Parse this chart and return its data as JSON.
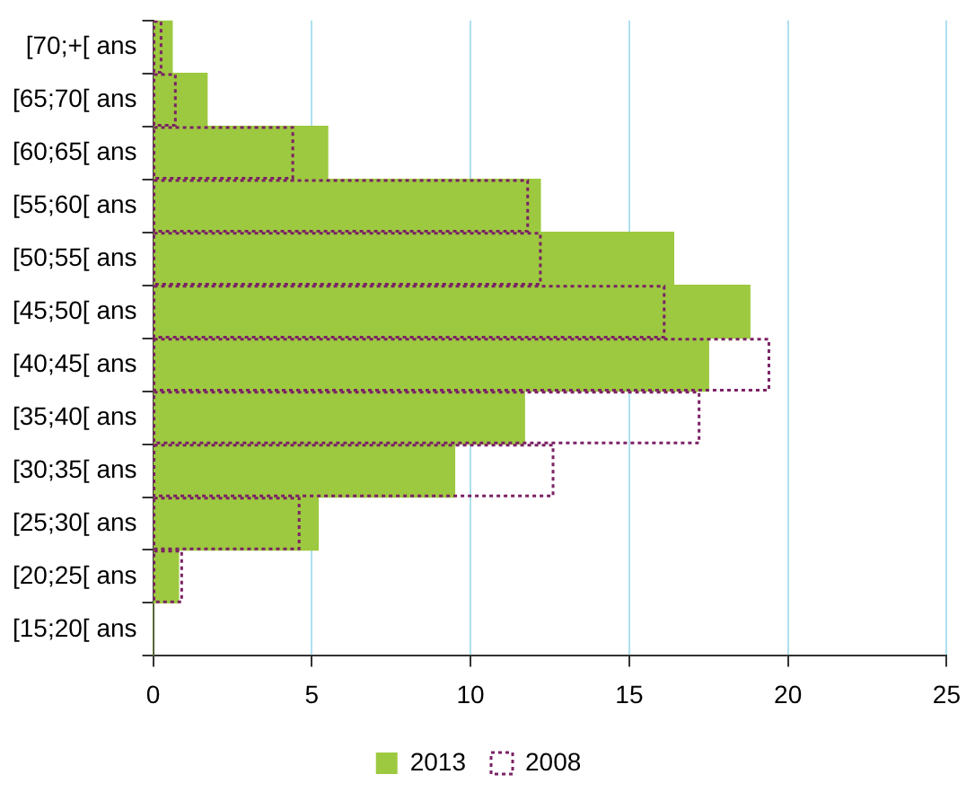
{
  "chart_data": {
    "type": "bar",
    "orientation": "horizontal",
    "categories": [
      "[70;+[ ans",
      "[65;70[ ans",
      "[60;65[ ans",
      "[55;60[ ans",
      "[50;55[ ans",
      "[45;50[ ans",
      "[40;45[ ans",
      "[35;40[ ans",
      "[30;35[ ans",
      "[25;30[ ans",
      "[20;25[ ans",
      "[15;20[ ans"
    ],
    "series": [
      {
        "name": "2013",
        "color": "#9dc940",
        "values": [
          0.6,
          1.7,
          5.5,
          12.2,
          16.4,
          18.8,
          17.5,
          11.7,
          9.5,
          5.2,
          0.8,
          0
        ]
      },
      {
        "name": "2008",
        "color": "#7b2265",
        "line_style": "dotted",
        "values": [
          0.25,
          0.7,
          4.4,
          11.8,
          12.2,
          16.1,
          19.4,
          17.2,
          12.6,
          4.6,
          0.9,
          0
        ]
      }
    ],
    "xlim": [
      0,
      25
    ],
    "xticks": [
      0,
      5,
      10,
      15,
      20,
      25
    ],
    "grid": "x",
    "legend": "bottom"
  }
}
